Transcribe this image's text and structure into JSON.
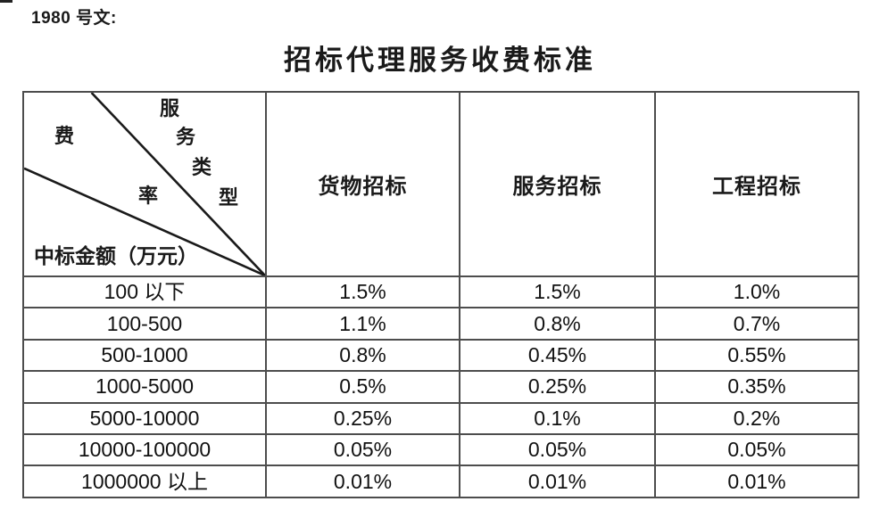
{
  "page": {
    "doc_ref": "1980 号文:",
    "title": "招标代理服务收费标准"
  },
  "table": {
    "corner": {
      "diagonal_top_chars": [
        "服",
        "务",
        "类",
        "型"
      ],
      "diagonal_top_label": "服务类型",
      "diagonal_middle_chars": [
        "费",
        "率"
      ],
      "diagonal_middle_label": "费率",
      "bottom_label": "中标金额（万元）"
    },
    "columns": [
      "货物招标",
      "服务招标",
      "工程招标"
    ],
    "rows": [
      {
        "range": "100 以下",
        "values": [
          "1.5%",
          "1.5%",
          "1.0%"
        ]
      },
      {
        "range": "100-500",
        "values": [
          "1.1%",
          "0.8%",
          "0.7%"
        ]
      },
      {
        "range": "500-1000",
        "values": [
          "0.8%",
          "0.45%",
          "0.55%"
        ]
      },
      {
        "range": "1000-5000",
        "values": [
          "0.5%",
          "0.25%",
          "0.35%"
        ]
      },
      {
        "range": "5000-10000",
        "values": [
          "0.25%",
          "0.1%",
          "0.2%"
        ]
      },
      {
        "range": "10000-100000",
        "values": [
          "0.05%",
          "0.05%",
          "0.05%"
        ]
      },
      {
        "range": "1000000 以上",
        "values": [
          "0.01%",
          "0.01%",
          "0.01%"
        ]
      }
    ]
  },
  "colors": {
    "border": "#4d4d4d",
    "text": "#1a1a1a",
    "diagonal_line": "#1a1a1a",
    "background": "#ffffff"
  }
}
